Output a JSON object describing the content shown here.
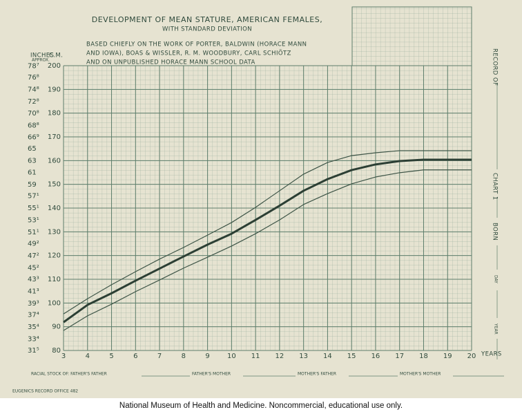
{
  "chart_data": {
    "type": "line",
    "title": "DEVELOPMENT OF MEAN STATURE, AMERICAN FEMALES,",
    "subtitle": "WITH STANDARD DEVIATION",
    "annotations": [
      "BASED CHIEFLY ON THE WORK OF PORTER, BALDWIN (HORACE MANN",
      "AND IOWA), BOAS & WISSLER, R. M. WOODBURY, CARL SCHIÖTZ",
      "AND ON UNPUBLISHED HORACE MANN SCHOOL DATA"
    ],
    "y_label": "C.M.",
    "y2_label": "INCHES",
    "y2_note": "APPROX.",
    "x_label": "YEARS",
    "x": [
      3,
      4,
      5,
      6,
      7,
      8,
      9,
      10,
      11,
      12,
      13,
      14,
      15,
      16,
      17,
      18,
      19,
      20
    ],
    "xlim": [
      3,
      20
    ],
    "xticks": [
      3,
      4,
      5,
      6,
      7,
      8,
      9,
      10,
      11,
      12,
      13,
      14,
      15,
      16,
      17,
      18,
      19,
      20
    ],
    "ylim": [
      80,
      200
    ],
    "yticks": [
      80,
      90,
      100,
      110,
      120,
      130,
      140,
      150,
      160,
      170,
      180,
      190,
      200
    ],
    "y2lim": [
      31.5,
      78.74
    ],
    "y2ticks": [
      {
        "value": 31.5,
        "label": "31⁵"
      },
      {
        "value": 33.4,
        "label": "33⁴"
      },
      {
        "value": 35.4,
        "label": "35⁴"
      },
      {
        "value": 37.4,
        "label": "37⁴"
      },
      {
        "value": 39.3,
        "label": "39³"
      },
      {
        "value": 41.3,
        "label": "41³"
      },
      {
        "value": 43.3,
        "label": "43³"
      },
      {
        "value": 45.2,
        "label": "45²"
      },
      {
        "value": 47.2,
        "label": "47²"
      },
      {
        "value": 49.2,
        "label": "49²"
      },
      {
        "value": 51.1,
        "label": "51¹"
      },
      {
        "value": 53.1,
        "label": "53¹"
      },
      {
        "value": 55.1,
        "label": "55¹"
      },
      {
        "value": 57.1,
        "label": "57¹"
      },
      59,
      61,
      63,
      65,
      {
        "value": 66.9,
        "label": "66⁹"
      },
      {
        "value": 68.8,
        "label": "68⁸"
      },
      {
        "value": 70.8,
        "label": "70⁸"
      },
      {
        "value": 72.8,
        "label": "72⁸"
      },
      {
        "value": 74.8,
        "label": "74⁸"
      },
      {
        "value": 76.8,
        "label": "76⁸"
      },
      {
        "value": 78.7,
        "label": "78⁷"
      }
    ],
    "grid": true,
    "grid_color": "#5d7e6b",
    "series": [
      {
        "color": "#2c3f34",
        "style": "bold",
        "values": [
          91.9,
          99.2,
          104.1,
          109.4,
          114.5,
          119.6,
          124.6,
          129.2,
          135,
          141,
          147.3,
          152.2,
          156,
          158.4,
          159.8,
          160.4,
          160.4,
          160.4
        ]
      },
      {
        "color": "#3d5446",
        "style": "thin",
        "values": [
          95.4,
          101.8,
          107.7,
          113.2,
          118.5,
          123.4,
          128.6,
          133.9,
          140.3,
          147.3,
          154.3,
          159.2,
          162.1,
          163.3,
          164.2,
          164.2,
          164.2,
          164.2
        ]
      },
      {
        "color": "#3d5446",
        "style": "thin",
        "values": [
          88.4,
          94.6,
          99.5,
          104.8,
          109.7,
          114.7,
          119.3,
          124,
          129.2,
          135,
          141.5,
          146.1,
          150.2,
          153.1,
          154.9,
          156.1,
          156.1,
          156.1
        ]
      }
    ]
  },
  "form": {
    "record_of": "RECORD OF",
    "chart": "CHART 1",
    "born": "BORN",
    "day": "DAY",
    "year": "YEAR",
    "racial_stock": "RACIAL STOCK OF:  FATHER'S FATHER",
    "fathers_mother": "FATHER'S MOTHER",
    "mothers_father": "MOTHER'S FATHER",
    "mothers_mother": "MOTHER'S MOTHER",
    "office": "EUGENICS RECORD OFFICE 482"
  },
  "caption": "National Museum of Health and Medicine. Noncommercial, educational use only."
}
